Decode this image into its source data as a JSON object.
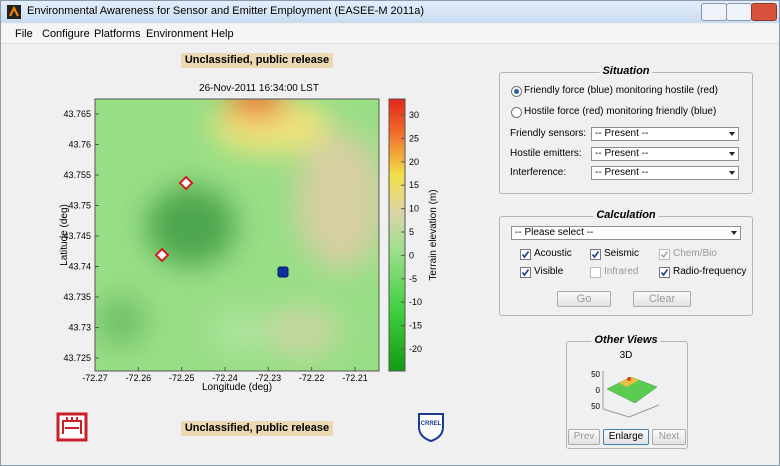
{
  "window": {
    "title": "Environmental Awareness for Sensor and Emitter Employment (EASEE-M 2011a)"
  },
  "menu": [
    "File",
    "Configure",
    "Platforms",
    "Environment",
    "Help"
  ],
  "banner": {
    "top": "Unclassified, public release",
    "bottom": "Unclassified, public release"
  },
  "map": {
    "title": "26-Nov-2011 16:34:00 LST",
    "x_label": "Longitude (deg)",
    "y_label": "Latitude (deg)",
    "xticks": [
      -72.27,
      -72.26,
      -72.25,
      -72.24,
      -72.23,
      -72.22,
      -72.21
    ],
    "yticks": [
      43.765,
      43.76,
      43.755,
      43.75,
      43.745,
      43.74,
      43.735,
      43.73,
      43.725
    ],
    "colorbar": {
      "label": "Terrain elevation (m)",
      "ticks": [
        30,
        25,
        20,
        15,
        10,
        5,
        0,
        -5,
        -10,
        -15,
        -20
      ]
    }
  },
  "logos": {
    "crrel": "CRREL"
  },
  "situation": {
    "title": "Situation",
    "selected": 0,
    "options": [
      "Friendly force (blue) monitoring hostile (red)",
      "Hostile force (red) monitoring friendly (blue)"
    ],
    "fields": [
      {
        "label": "Friendly sensors:",
        "value": "-- Present --"
      },
      {
        "label": "Hostile emitters:",
        "value": "-- Present --"
      },
      {
        "label": "Interference:",
        "value": "-- Present --"
      }
    ]
  },
  "calculation": {
    "title": "Calculation",
    "select": "-- Please select --",
    "checks": [
      {
        "label": "Acoustic",
        "checked": true,
        "enabled": true
      },
      {
        "label": "Seismic",
        "checked": true,
        "enabled": true
      },
      {
        "label": "Chem/Bio",
        "checked": true,
        "enabled": false
      },
      {
        "label": "Visible",
        "checked": true,
        "enabled": true
      },
      {
        "label": "Infrared",
        "checked": false,
        "enabled": false
      },
      {
        "label": "Radio-frequency",
        "checked": true,
        "enabled": true
      }
    ],
    "buttons": [
      "Go",
      "Clear"
    ]
  },
  "other_views": {
    "title": "Other Views",
    "view": "3D",
    "ticks": [
      50,
      0,
      -50
    ],
    "buttons": [
      "Prev",
      "Enlarge",
      "Next"
    ]
  }
}
